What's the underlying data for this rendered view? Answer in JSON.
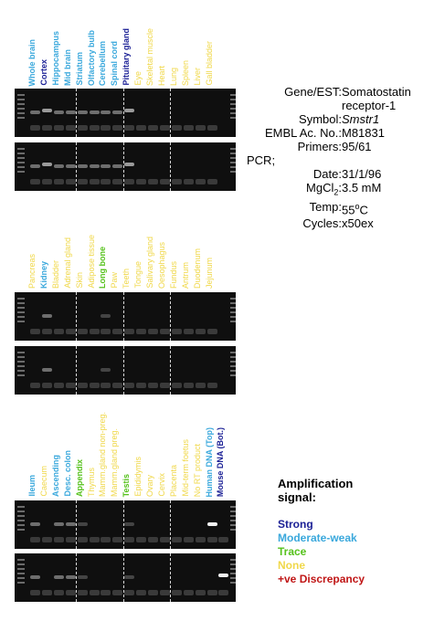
{
  "colors": {
    "strong": "#1c2196",
    "moderate": "#3aa8dc",
    "trace": "#56c21c",
    "none": "#f0d84a",
    "discrepancy": "#c01616"
  },
  "panels": [
    {
      "lanes": [
        {
          "label": "Whole brain",
          "level": "moderate"
        },
        {
          "label": "Cortex",
          "level": "strong"
        },
        {
          "label": "Hippocampus",
          "level": "moderate"
        },
        {
          "label": "Mid brain",
          "level": "moderate"
        },
        {
          "label": "Striatum",
          "level": "moderate"
        },
        {
          "label": "Olfactory bulb",
          "level": "moderate"
        },
        {
          "label": "Cerebellum",
          "level": "moderate"
        },
        {
          "label": "Spinal cord",
          "level": "moderate"
        },
        {
          "label": "Pituitary gland",
          "level": "strong"
        },
        {
          "label": "Eye",
          "level": "none"
        },
        {
          "label": "Skeletal muscle",
          "level": "none"
        },
        {
          "label": "Heart",
          "level": "none"
        },
        {
          "label": "Lung",
          "level": "none"
        },
        {
          "label": "Spleen",
          "level": "none"
        },
        {
          "label": "Liver",
          "level": "none"
        },
        {
          "label": "Gall bladder",
          "level": "none"
        }
      ]
    },
    {
      "lanes": [
        {
          "label": "Pancreas",
          "level": "none"
        },
        {
          "label": "Kidney",
          "level": "moderate"
        },
        {
          "label": "Bladder",
          "level": "none"
        },
        {
          "label": "Adrenal gland",
          "level": "none"
        },
        {
          "label": "Skin",
          "level": "none"
        },
        {
          "label": "Adipose tissue",
          "level": "none"
        },
        {
          "label": "Long bone",
          "level": "trace"
        },
        {
          "label": "Paw",
          "level": "none"
        },
        {
          "label": "Teeth",
          "level": "none"
        },
        {
          "label": "Tongue",
          "level": "none"
        },
        {
          "label": "Salivary gland",
          "level": "none"
        },
        {
          "label": "Oesophagus",
          "level": "none"
        },
        {
          "label": "Fundus",
          "level": "none"
        },
        {
          "label": "Antrum",
          "level": "none"
        },
        {
          "label": "Duodenum",
          "level": "none"
        },
        {
          "label": "Jejunum",
          "level": "none"
        }
      ]
    },
    {
      "lanes": [
        {
          "label": "Ileum",
          "level": "moderate"
        },
        {
          "label": "Caecum",
          "level": "none"
        },
        {
          "label": "Ascending",
          "level": "moderate"
        },
        {
          "label": "Desc. colon",
          "level": "moderate"
        },
        {
          "label": "Appendix",
          "level": "trace"
        },
        {
          "label": "Thymus",
          "level": "none"
        },
        {
          "label": "Mamm.gland non-preg.",
          "level": "none"
        },
        {
          "label": "Mamm.gland preg.",
          "level": "none"
        },
        {
          "label": "Testis",
          "level": "trace"
        },
        {
          "label": "Epididymis",
          "level": "none"
        },
        {
          "label": "Ovary",
          "level": "none"
        },
        {
          "label": "Cervix",
          "level": "none"
        },
        {
          "label": "Placenta",
          "level": "none"
        },
        {
          "label": "Mid-term foetus",
          "level": "none"
        },
        {
          "label": "No RT product",
          "level": "none"
        },
        {
          "label": "Human DNA (Top)",
          "level": "moderate"
        },
        {
          "label": "Mouse DNA (Bot.)",
          "level": "strong"
        }
      ]
    }
  ],
  "info": [
    {
      "key": "Gene/EST:",
      "value": "Somatostatin"
    },
    {
      "key": "",
      "value": "receptor-1"
    },
    {
      "key": "Symbol:",
      "value": "Smstr1",
      "italic": true
    },
    {
      "key": "EMBL Ac. No.:",
      "value": "M81831"
    },
    {
      "key": "Primers:",
      "value": "95/61"
    },
    {
      "key": "PCR;",
      "value": "",
      "leftkey": true
    },
    {
      "key": "Date:",
      "value": "31/1/96"
    },
    {
      "key": "MgCl",
      "key_sub": "2",
      "key_after": ":",
      "value": "3.5 mM"
    },
    {
      "key": "Temp:",
      "value": "55",
      "value_sup": "o",
      "value_after": "C"
    },
    {
      "key": "Cycles:",
      "value": "x50ex"
    }
  ],
  "legend": {
    "title": "Amplification signal:",
    "items": [
      {
        "label": "Strong",
        "level": "strong"
      },
      {
        "label": "Moderate-weak",
        "level": "moderate"
      },
      {
        "label": "Trace",
        "level": "trace"
      },
      {
        "label": "None",
        "level": "none"
      },
      {
        "label": "+ve Discrepancy",
        "level": "discrepancy"
      }
    ]
  }
}
